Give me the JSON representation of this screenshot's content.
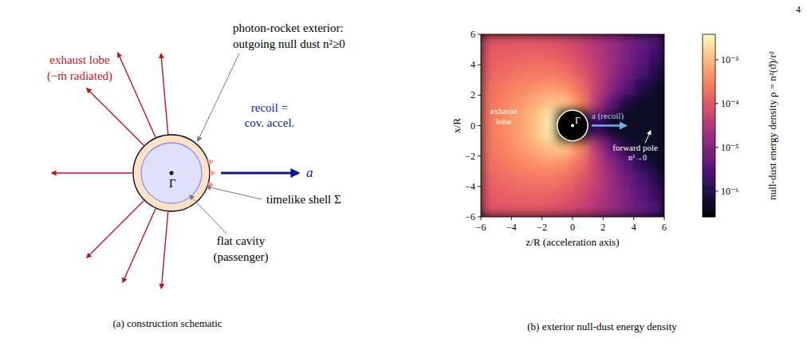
{
  "page_number": "4",
  "schematic": {
    "exhaust_label": "exhaust lobe",
    "exhaust_sub": "(−ṁ radiated)",
    "exterior_label": [
      "photon-rocket exterior:",
      "outgoing null dust n²≥0"
    ],
    "recoil_label": [
      "recoil =",
      "cov. accel."
    ],
    "accel_symbol": "a",
    "center_symbol": "Γ",
    "shell_label": "timelike shell Σ",
    "cavity_label": [
      "flat cavity",
      "(passenger)"
    ],
    "caption": "(a) construction schematic"
  },
  "chart_data": {
    "type": "heatmap",
    "caption": "(b) exterior null-dust energy density",
    "x_label": "z/R  (acceleration axis)",
    "y_label": "x/R",
    "log": true,
    "xlim": [
      -6,
      6
    ],
    "ylim": [
      -6,
      6
    ],
    "xticks": [
      {
        "value": -6,
        "label": "−6"
      },
      {
        "value": -4,
        "label": "−4"
      },
      {
        "value": -2,
        "label": "−2"
      },
      0,
      2,
      4,
      6
    ],
    "yticks": [
      {
        "value": -6,
        "label": "−6"
      },
      {
        "value": -4,
        "label": "−4"
      },
      {
        "value": -2,
        "label": "−2"
      },
      0,
      2,
      4,
      6
    ],
    "x": [
      -5.5,
      -4.5,
      -3.5,
      -2.5,
      -1.5,
      -0.5,
      0.5,
      1.5,
      2.5,
      3.5,
      4.5,
      5.5
    ],
    "y": [
      5.5,
      4.5,
      3.5,
      2.5,
      1.5,
      0.5,
      -0.5,
      -1.5,
      -2.5,
      -3.5,
      -4.5,
      -5.5
    ],
    "cells": [
      [
        8.7e-05,
        9.5e-05,
        0.0001,
        9.9e-05,
        8.8e-05,
        7e-05,
        4.9e-05,
        3e-05,
        1.7e-05,
        9.1e-06,
        4.8e-06,
        2.6e-06
      ],
      [
        0.000112,
        0.00013,
        0.000144,
        0.00015,
        0.000139,
        0.000108,
        7e-05,
        3.7e-05,
        1.8e-05,
        8.3e-06,
        3.8e-06,
        1.8e-06
      ],
      [
        0.000144,
        0.000177,
        0.000214,
        0.00024,
        0.00024,
        0.00019,
        0.000106,
        4.6e-05,
        1.7e-05,
        6.3e-06,
        2.5e-06,
        1e-06
      ],
      [
        0.00018,
        0.00024,
        0.00032,
        0.00042,
        0.00049,
        0.0004,
        0.00018,
        5e-05,
        1.24e-05,
        3.4e-06,
        1.08e-06,
        5e-07
      ],
      [
        0.00021,
        0.0003,
        0.00046,
        0.00073,
        0.00116,
        0.00125,
        0.00034,
        3.4e-05,
        4.3e-06,
        8.1e-07,
        5e-07,
        5e-07
      ],
      [
        0.000235,
        0.00035,
        0.00057,
        0.00109,
        0.0027,
        null,
        null,
        1.9e-06,
        5e-07,
        5e-07,
        5e-07,
        5e-07
      ],
      [
        0.000235,
        0.00035,
        0.00057,
        0.00109,
        0.0027,
        null,
        null,
        1.9e-06,
        5e-07,
        5e-07,
        5e-07,
        5e-07
      ],
      [
        0.00021,
        0.0003,
        0.00046,
        0.00073,
        0.00116,
        0.00125,
        0.00034,
        3.4e-05,
        4.3e-06,
        8.1e-07,
        5e-07,
        5e-07
      ],
      [
        0.00018,
        0.00024,
        0.00032,
        0.00042,
        0.00049,
        0.0004,
        0.00018,
        5e-05,
        1.24e-05,
        3.4e-06,
        1.08e-06,
        5e-07
      ],
      [
        0.000144,
        0.000177,
        0.000214,
        0.00024,
        0.00024,
        0.00019,
        0.000106,
        4.6e-05,
        1.7e-05,
        6.3e-06,
        2.5e-06,
        1e-06
      ],
      [
        0.000112,
        0.00013,
        0.000144,
        0.00015,
        0.000139,
        0.000108,
        7e-05,
        3.7e-05,
        1.8e-05,
        8.3e-06,
        3.8e-06,
        1.8e-06
      ],
      [
        8.7e-05,
        9.5e-05,
        0.0001,
        9.9e-05,
        8.8e-05,
        7e-05,
        4.9e-05,
        3e-05,
        1.7e-05,
        9.1e-06,
        4.8e-06,
        2.6e-06
      ]
    ],
    "colorbar": {
      "label": "null-dust energy density  ρ = n²(ϑ)/r²",
      "range": [
        2.6e-07,
        0.0038
      ],
      "ticks": [
        {
          "value": 0.001,
          "label": "10⁻³"
        },
        {
          "value": 0.0001,
          "label": "10⁻⁴"
        },
        {
          "value": 1e-05,
          "label": "10⁻⁵"
        },
        {
          "value": 1e-06,
          "label": "10⁻⁶"
        }
      ]
    },
    "annotations": {
      "exhaust": "exhaust lobe",
      "recoil": "a (recoil)",
      "center": "Γ",
      "pole": "forward pole",
      "pole_sub": "n²→0"
    }
  }
}
